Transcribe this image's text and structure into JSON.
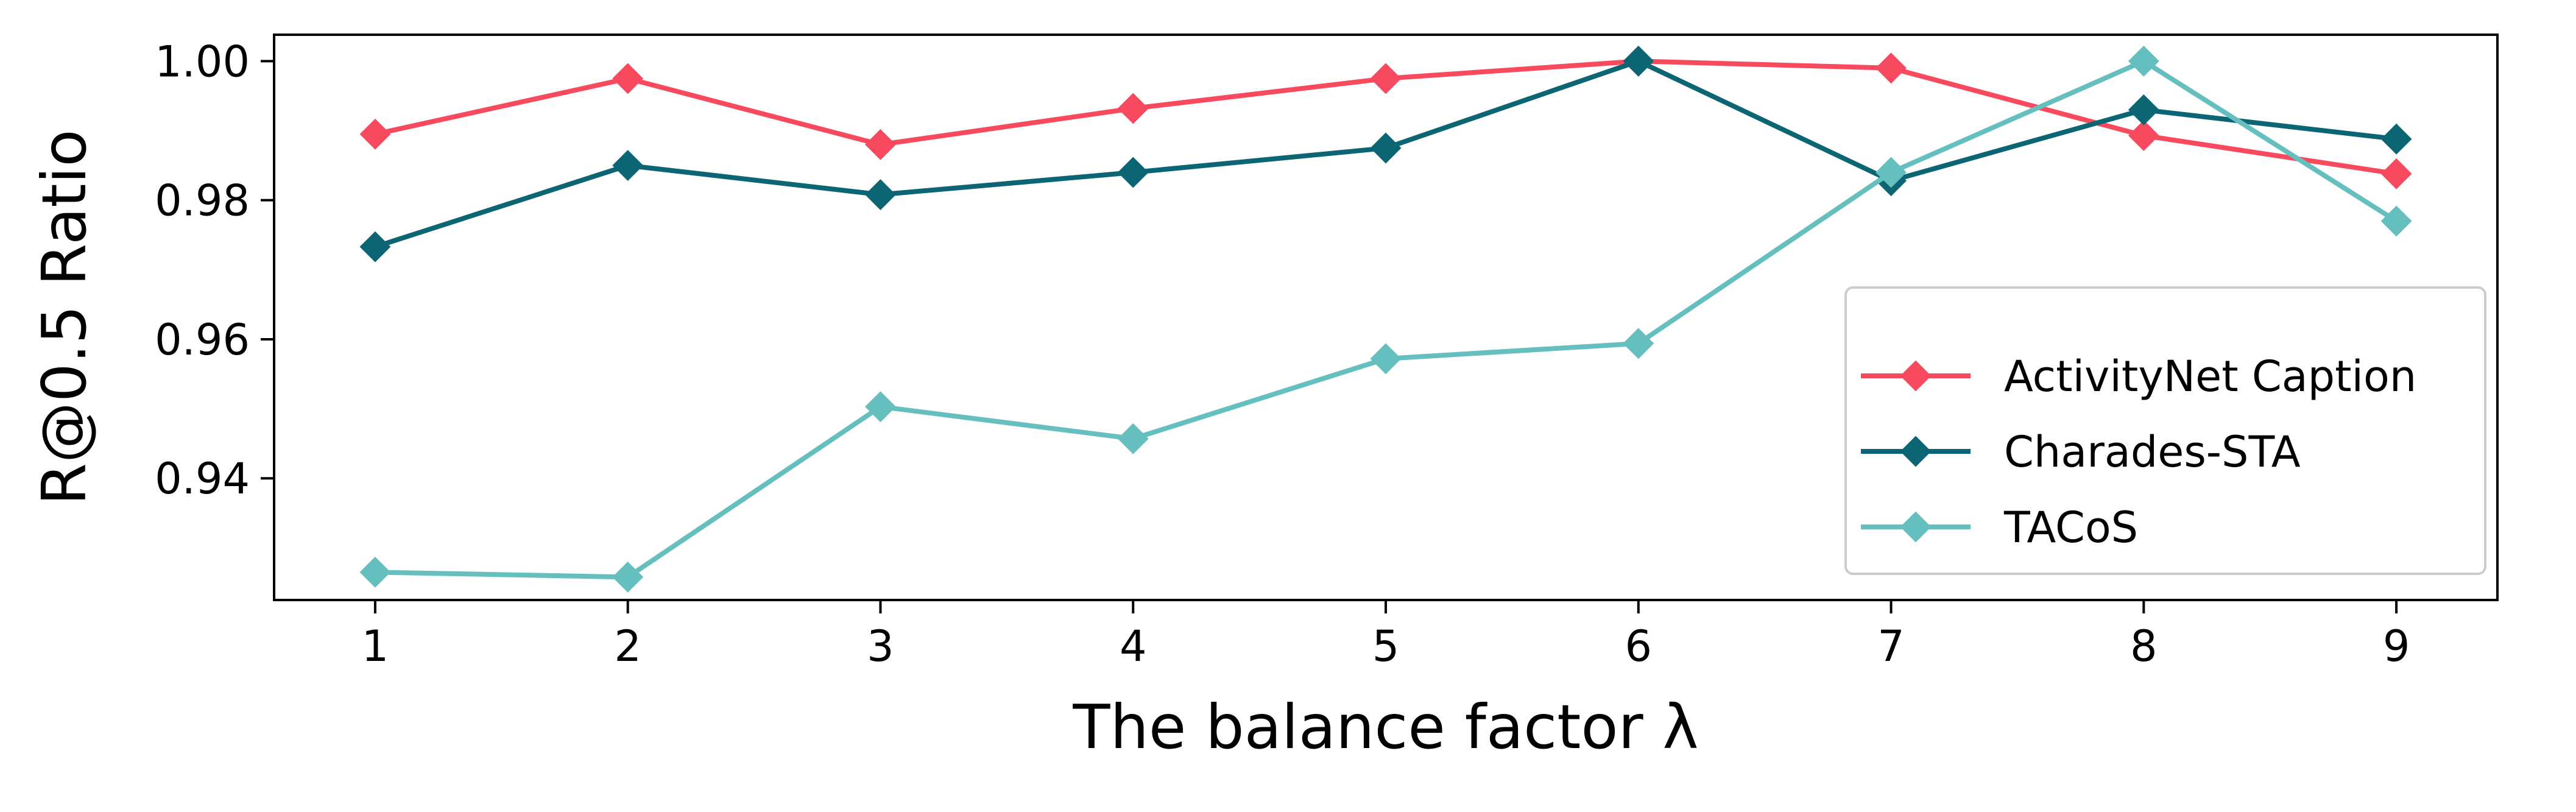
{
  "chart_data": {
    "type": "line",
    "xlabel": "The balance factor λ",
    "ylabel": "R@0.5 Ratio",
    "x": [
      1,
      2,
      3,
      4,
      5,
      6,
      7,
      8,
      9
    ],
    "xlim": [
      0.6,
      9.4
    ],
    "ylim": [
      0.9225,
      1.0038
    ],
    "yticks": [
      "0.94",
      "0.96",
      "0.98",
      "1.00"
    ],
    "ytick_values": [
      0.94,
      0.96,
      0.98,
      1.0
    ],
    "xticks": [
      "1",
      "2",
      "3",
      "4",
      "5",
      "6",
      "7",
      "8",
      "9"
    ],
    "grid": false,
    "legend_position": "lower-right",
    "marker": "diamond",
    "series": [
      {
        "name": "ActivityNet Caption",
        "color": "#f74a5e",
        "values": [
          0.9895,
          0.9975,
          0.988,
          0.9932,
          0.9975,
          1.0,
          0.999,
          0.9893,
          0.9838
        ]
      },
      {
        "name": "Charades-STA",
        "color": "#0c6573",
        "values": [
          0.9733,
          0.985,
          0.9808,
          0.984,
          0.9875,
          1.0,
          0.9828,
          0.993,
          0.9888
        ]
      },
      {
        "name": "TACoS",
        "color": "#66bfbf",
        "values": [
          0.9265,
          0.9258,
          0.9503,
          0.9457,
          0.9572,
          0.9594,
          0.984,
          1.0,
          0.977
        ]
      }
    ]
  }
}
